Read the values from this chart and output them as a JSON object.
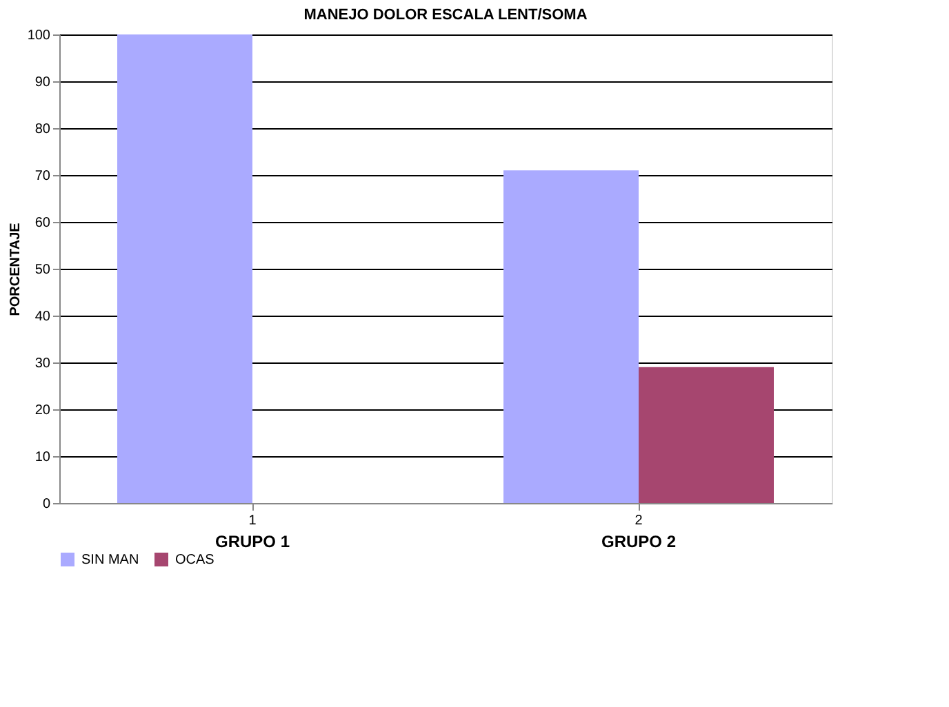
{
  "chart_data": {
    "type": "bar",
    "title": "MANEJO DOLOR ESCALA LENT/SOMA",
    "ylabel": "PORCENTAJE",
    "categories": [
      "1",
      "2"
    ],
    "series": [
      {
        "name": "SIN MAN",
        "color": "#aaaaff",
        "values": [
          100,
          71
        ]
      },
      {
        "name": "OCAS",
        "color": "#a6466f",
        "values": [
          0,
          29
        ]
      }
    ],
    "annotations": [
      "GRUPO 1",
      "GRUPO 2"
    ],
    "ylim": [
      0,
      100
    ],
    "yticks": [
      0,
      10,
      20,
      30,
      40,
      50,
      60,
      70,
      80,
      90,
      100
    ],
    "grid": "y",
    "legend": "bottom"
  }
}
